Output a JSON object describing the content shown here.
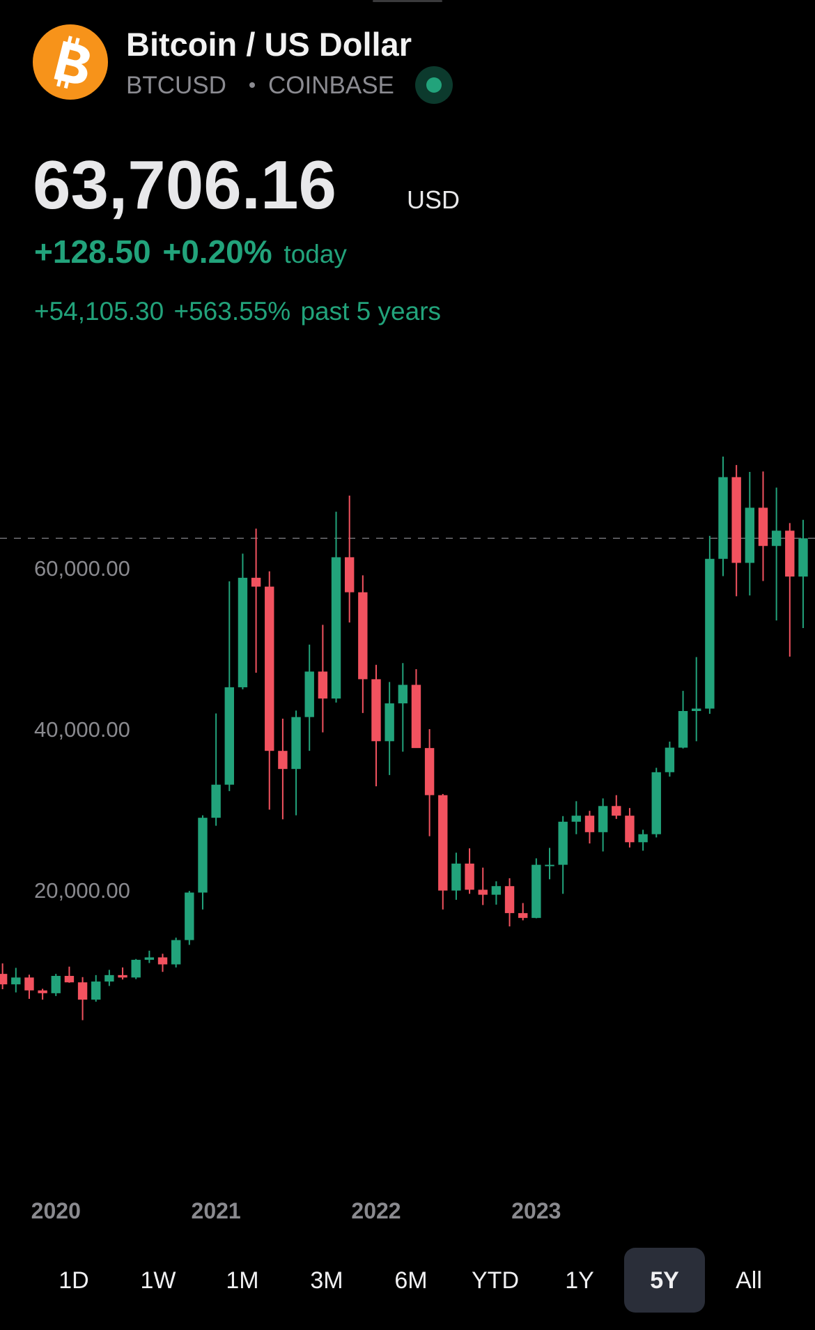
{
  "header": {
    "title": "Bitcoin / US Dollar",
    "symbol": "BTCUSD",
    "exchange": "COINBASE",
    "price": {
      "value": 63706.16,
      "label": "63,706.16"
    },
    "currency": "USD",
    "change_today": "+128.50",
    "change_today_pct": "+0.20%",
    "today_label": "today",
    "change_period": "+54,105.30",
    "change_period_pct": "+563.55%",
    "period_label": "past 5 years"
  },
  "chart_data": {
    "type": "candlestick",
    "up_color": "#22a37b",
    "down_color": "#f2525f",
    "categories": [
      null,
      null,
      null,
      null,
      "2020",
      null,
      null,
      null,
      null,
      null,
      null,
      null,
      null,
      null,
      null,
      null,
      "2021",
      null,
      null,
      null,
      null,
      null,
      null,
      null,
      null,
      null,
      null,
      null,
      "2022",
      null,
      null,
      null,
      null,
      null,
      null,
      null,
      null,
      null,
      null,
      null,
      "2023",
      null,
      null,
      null,
      null,
      null,
      null,
      null,
      null,
      null,
      null,
      null,
      null,
      null,
      null,
      null,
      null,
      null,
      null,
      null,
      null
    ],
    "open": [
      9600,
      8300,
      9150,
      7550,
      7200,
      9350,
      8550,
      6400,
      8650,
      9450,
      9150,
      11350,
      11650,
      10780,
      13800,
      19700,
      28990,
      33100,
      45200,
      58800,
      57700,
      37300,
      35050,
      41500,
      47150,
      43800,
      61350,
      57000,
      46200,
      38500,
      43200,
      45500,
      37650,
      31800,
      19950,
      23300,
      20050,
      19430,
      20500,
      17150,
      16550,
      23150,
      23150,
      28500,
      29250,
      27200,
      30450,
      29250,
      25950,
      26950,
      34650,
      37700,
      42250,
      42550,
      61150,
      71300,
      60650,
      67500,
      62750,
      64650,
      58950
    ],
    "high": [
      10900,
      10350,
      9500,
      7750,
      9600,
      10500,
      9200,
      9450,
      10100,
      10400,
      11450,
      12480,
      12100,
      14100,
      19900,
      29300,
      41950,
      58350,
      61800,
      64900,
      59600,
      41300,
      42300,
      50500,
      52950,
      67000,
      69000,
      59100,
      47990,
      45850,
      48200,
      47450,
      40000,
      31950,
      24650,
      25200,
      22800,
      21100,
      21480,
      18400,
      23950,
      25250,
      29200,
      31050,
      29850,
      31400,
      31800,
      30200,
      27500,
      35200,
      38450,
      44750,
      48950,
      64000,
      73850,
      72800,
      71950,
      72000,
      70000,
      65600,
      66000
    ],
    "low": [
      7700,
      7300,
      6500,
      6400,
      6850,
      8500,
      3850,
      6150,
      8100,
      8900,
      8950,
      10950,
      9850,
      10400,
      13200,
      17600,
      28000,
      32300,
      44950,
      47000,
      30000,
      28800,
      29300,
      37300,
      39600,
      43300,
      53250,
      42000,
      32900,
      34300,
      37200,
      37700,
      26700,
      17600,
      18800,
      19550,
      18150,
      18200,
      15500,
      16250,
      16500,
      21350,
      19550,
      26950,
      25800,
      24800,
      28850,
      25300,
      24900,
      26550,
      34100,
      37600,
      38500,
      41900,
      59000,
      56500,
      56600,
      58400,
      53500,
      49000,
      52550
    ],
    "close": [
      8300,
      9150,
      7550,
      7200,
      9350,
      8550,
      6400,
      8650,
      9450,
      9150,
      11350,
      11650,
      10780,
      13800,
      19700,
      28990,
      33100,
      45200,
      58800,
      57700,
      37300,
      35050,
      41500,
      47150,
      43800,
      61350,
      57000,
      46200,
      38500,
      43200,
      45500,
      37650,
      31800,
      19950,
      23300,
      20050,
      19430,
      20500,
      17150,
      16550,
      23150,
      23150,
      28500,
      29250,
      27200,
      30450,
      29250,
      25950,
      26950,
      34650,
      37700,
      42250,
      42550,
      61150,
      71300,
      60650,
      67500,
      62750,
      64650,
      58950,
      63700
    ],
    "ylim": [
      0,
      80000
    ],
    "yticks": [
      {
        "value": 20000,
        "label": "20,000.00"
      },
      {
        "value": 40000,
        "label": "40,000.00"
      },
      {
        "value": 60000,
        "label": "60,000.00"
      }
    ]
  },
  "ranges": {
    "labels": [
      "1D",
      "1W",
      "1M",
      "3M",
      "6M",
      "YTD",
      "1Y",
      "5Y",
      "All"
    ],
    "active": 7
  }
}
